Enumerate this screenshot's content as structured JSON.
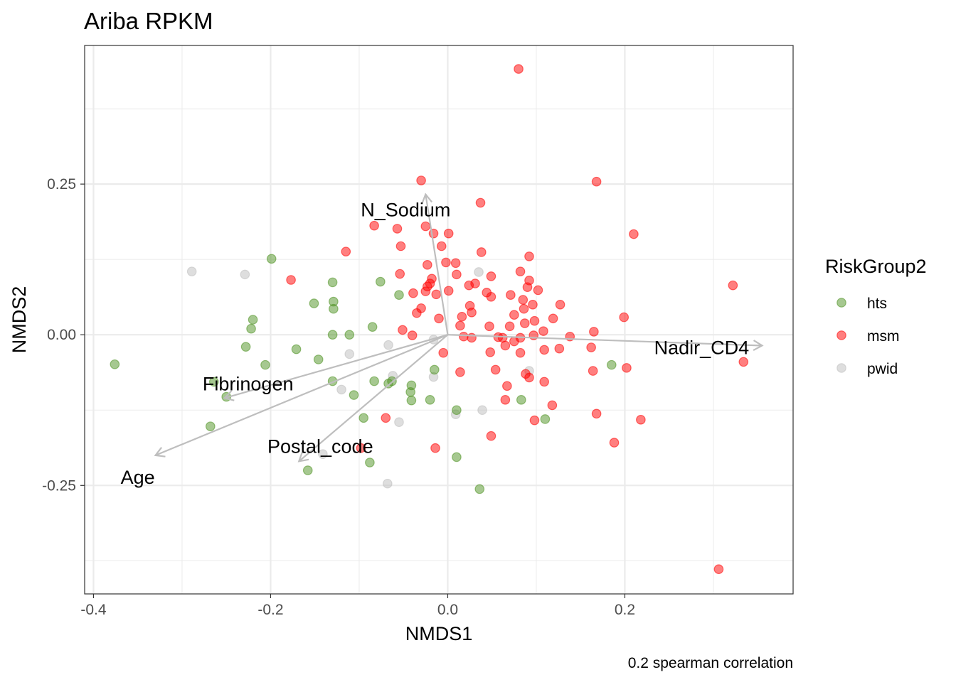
{
  "chart_data": {
    "type": "scatter",
    "title": "Ariba RPKM",
    "xlabel": "NMDS1",
    "ylabel": "NMDS2",
    "caption": "0.2 spearman correlation",
    "xlim": [
      -0.41,
      0.39
    ],
    "ylim": [
      -0.43,
      0.48
    ],
    "xticks": [
      -0.4,
      -0.2,
      0.0,
      0.2
    ],
    "xtick_labels": [
      "-0.4",
      "-0.2",
      "0.0",
      "0.2"
    ],
    "yticks": [
      -0.25,
      0.0,
      0.25
    ],
    "ytick_labels": [
      "-0.25",
      "0.00",
      "0.25"
    ],
    "grid": true,
    "legend": {
      "title": "RiskGroup2",
      "position": "right",
      "entries": [
        "hts",
        "msm",
        "pwid"
      ]
    },
    "colors": {
      "hts": "#4d9221",
      "msm": "#ff0000",
      "pwid": "#bdbdbd"
    },
    "vector_color": "#bebebe",
    "vectors": [
      {
        "name": "N_Sodium",
        "x": -0.025,
        "y": 0.233
      },
      {
        "name": "Nadir_CD4",
        "x": 0.355,
        "y": -0.018
      },
      {
        "name": "Fibrinogen",
        "x": -0.252,
        "y": -0.105
      },
      {
        "name": "Age",
        "x": -0.33,
        "y": -0.2
      },
      {
        "name": "Postal_code",
        "x": -0.168,
        "y": -0.21
      }
    ],
    "series": [
      {
        "name": "hts",
        "points": [
          [
            -0.376,
            -0.049
          ],
          [
            -0.199,
            0.126
          ],
          [
            -0.13,
            0.087
          ],
          [
            -0.129,
            0.055
          ],
          [
            -0.129,
            0.043
          ],
          [
            -0.151,
            0.052
          ],
          [
            -0.22,
            0.025
          ],
          [
            -0.222,
            0.01
          ],
          [
            -0.228,
            -0.02
          ],
          [
            -0.13,
            0.0
          ],
          [
            -0.111,
            0.0
          ],
          [
            -0.085,
            0.013
          ],
          [
            -0.076,
            0.088
          ],
          [
            -0.055,
            0.066
          ],
          [
            -0.171,
            -0.024
          ],
          [
            -0.146,
            -0.041
          ],
          [
            -0.206,
            -0.05
          ],
          [
            -0.264,
            -0.078
          ],
          [
            -0.25,
            -0.103
          ],
          [
            -0.268,
            -0.152
          ],
          [
            -0.13,
            -0.077
          ],
          [
            -0.106,
            -0.1
          ],
          [
            -0.083,
            -0.077
          ],
          [
            -0.063,
            -0.077
          ],
          [
            -0.041,
            -0.084
          ],
          [
            -0.042,
            -0.095
          ],
          [
            -0.041,
            -0.109
          ],
          [
            -0.02,
            -0.108
          ],
          [
            -0.015,
            -0.058
          ],
          [
            -0.095,
            -0.138
          ],
          [
            -0.158,
            -0.225
          ],
          [
            -0.088,
            -0.212
          ],
          [
            0.01,
            -0.125
          ],
          [
            0.01,
            -0.203
          ],
          [
            0.036,
            -0.256
          ],
          [
            0.083,
            -0.108
          ],
          [
            0.11,
            -0.14
          ],
          [
            0.185,
            -0.05
          ],
          [
            -0.067,
            -0.081
          ]
        ]
      },
      {
        "name": "msm",
        "points": [
          [
            0.08,
            0.441
          ],
          [
            -0.03,
            0.256
          ],
          [
            0.168,
            0.254
          ],
          [
            0.037,
            0.219
          ],
          [
            0.21,
            0.167
          ],
          [
            -0.083,
            0.181
          ],
          [
            -0.057,
            0.176
          ],
          [
            -0.025,
            0.18
          ],
          [
            0.001,
            0.168
          ],
          [
            -0.016,
            0.168
          ],
          [
            -0.115,
            0.138
          ],
          [
            -0.053,
            0.147
          ],
          [
            -0.007,
            0.147
          ],
          [
            0.038,
            0.137
          ],
          [
            0.092,
            0.13
          ],
          [
            -0.177,
            0.091
          ],
          [
            -0.054,
            0.101
          ],
          [
            -0.023,
            0.116
          ],
          [
            -0.002,
            0.12
          ],
          [
            0.009,
            0.119
          ],
          [
            0.049,
            0.097
          ],
          [
            0.082,
            0.105
          ],
          [
            -0.018,
            0.093
          ],
          [
            -0.02,
            0.085
          ],
          [
            -0.023,
            0.08
          ],
          [
            -0.025,
            0.072
          ],
          [
            -0.013,
            0.067
          ],
          [
            0.01,
            0.1
          ],
          [
            0.001,
            0.073
          ],
          [
            0.024,
            0.082
          ],
          [
            0.031,
            0.085
          ],
          [
            0.044,
            0.07
          ],
          [
            0.049,
            0.063
          ],
          [
            0.071,
            0.066
          ],
          [
            0.085,
            0.058
          ],
          [
            0.092,
            0.09
          ],
          [
            0.09,
            0.079
          ],
          [
            0.102,
            0.074
          ],
          [
            -0.039,
            0.069
          ],
          [
            -0.03,
            0.044
          ],
          [
            -0.035,
            0.036
          ],
          [
            -0.01,
            0.027
          ],
          [
            0.016,
            0.03
          ],
          [
            0.025,
            0.048
          ],
          [
            0.027,
            0.037
          ],
          [
            0.086,
            0.043
          ],
          [
            0.096,
            0.05
          ],
          [
            0.075,
            0.033
          ],
          [
            0.098,
            0.023
          ],
          [
            0.119,
            0.027
          ],
          [
            0.127,
            0.05
          ],
          [
            0.199,
            0.029
          ],
          [
            0.047,
            0.014
          ],
          [
            0.014,
            0.015
          ],
          [
            0.07,
            0.014
          ],
          [
            0.087,
            0.019
          ],
          [
            0.027,
            -0.005
          ],
          [
            0.057,
            -0.004
          ],
          [
            0.062,
            -0.005
          ],
          [
            0.075,
            -0.011
          ],
          [
            0.082,
            -0.005
          ],
          [
            0.097,
            -0.001
          ],
          [
            0.108,
            0.006
          ],
          [
            0.138,
            -0.003
          ],
          [
            0.165,
            0.005
          ],
          [
            -0.04,
            -0.001
          ],
          [
            -0.051,
            0.008
          ],
          [
            0.018,
            -0.003
          ],
          [
            0.048,
            -0.029
          ],
          [
            0.065,
            -0.018
          ],
          [
            0.082,
            -0.03
          ],
          [
            0.109,
            -0.025
          ],
          [
            0.126,
            -0.023
          ],
          [
            0.162,
            -0.021
          ],
          [
            0.322,
            0.082
          ],
          [
            0.334,
            -0.045
          ],
          [
            0.202,
            -0.055
          ],
          [
            -0.005,
            -0.03
          ],
          [
            0.014,
            -0.062
          ],
          [
            0.054,
            -0.058
          ],
          [
            0.067,
            -0.085
          ],
          [
            0.088,
            -0.065
          ],
          [
            0.092,
            -0.071
          ],
          [
            0.109,
            -0.078
          ],
          [
            0.164,
            -0.06
          ],
          [
            0.065,
            -0.108
          ],
          [
            0.118,
            -0.117
          ],
          [
            0.168,
            -0.131
          ],
          [
            0.098,
            -0.142
          ],
          [
            0.218,
            -0.141
          ],
          [
            0.049,
            -0.168
          ],
          [
            0.188,
            -0.179
          ],
          [
            -0.014,
            -0.188
          ],
          [
            -0.098,
            -0.188
          ],
          [
            -0.07,
            -0.138
          ],
          [
            0.306,
            -0.389
          ]
        ]
      },
      {
        "name": "pwid",
        "points": [
          [
            -0.289,
            0.105
          ],
          [
            -0.229,
            0.1
          ],
          [
            0.035,
            0.104
          ],
          [
            -0.111,
            -0.032
          ],
          [
            -0.067,
            -0.017
          ],
          [
            -0.12,
            -0.091
          ],
          [
            -0.062,
            -0.068
          ],
          [
            -0.055,
            -0.145
          ],
          [
            -0.016,
            -0.07
          ],
          [
            -0.016,
            -0.008
          ],
          [
            0.009,
            -0.132
          ],
          [
            0.039,
            -0.125
          ],
          [
            0.092,
            -0.06
          ],
          [
            -0.141,
            -0.198
          ],
          [
            -0.068,
            -0.247
          ]
        ]
      }
    ]
  }
}
